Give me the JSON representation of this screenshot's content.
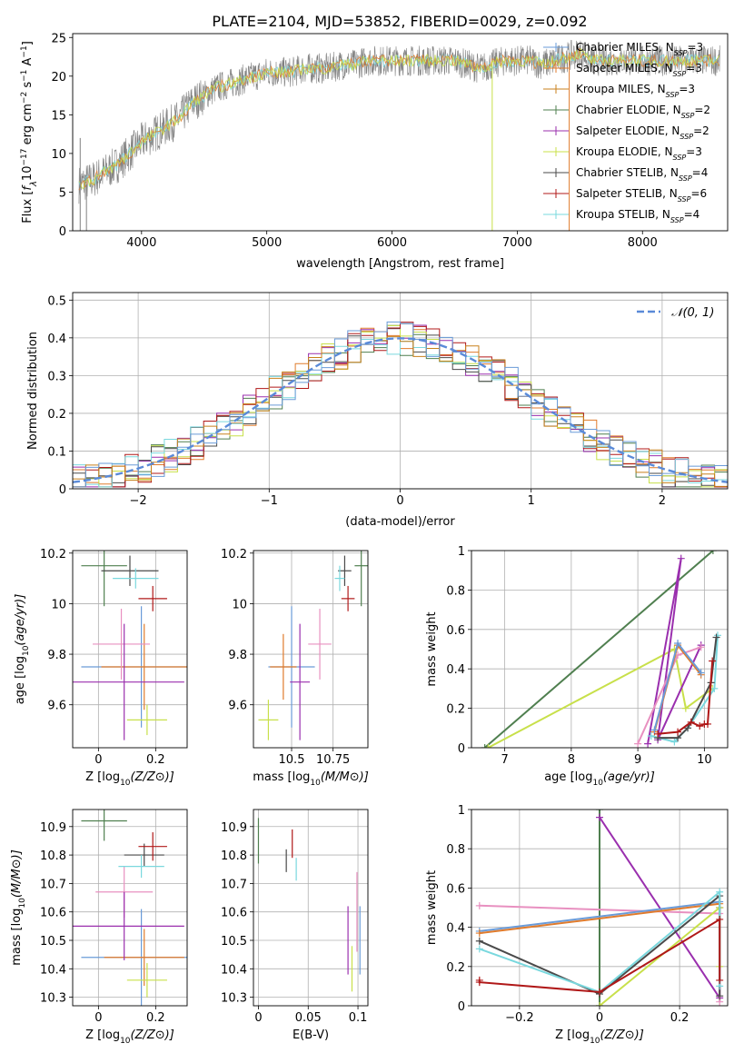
{
  "title": "PLATE=2104, MJD=53852, FIBERID=0029, z=0.092",
  "model_colors": [
    "#6a9bd8",
    "#e07b2c",
    "#c8801c",
    "#4f7f4f",
    "#9a2fae",
    "#c8e04a",
    "#4a4a4a",
    "#b01818",
    "#7ad8de"
  ],
  "chart_data": [
    {
      "id": "spectrum",
      "type": "line",
      "xlabel": "wavelength [Angstrom, rest frame]",
      "ylabel": "Flux [f_λ10^-17 erg cm^-2 s^-1 A^-1]",
      "xlim": [
        3450,
        8680
      ],
      "ylim": [
        0,
        25.5
      ],
      "xticks": [
        4000,
        5000,
        6000,
        7000,
        8000
      ],
      "yticks": [
        0,
        5,
        10,
        15,
        20,
        25
      ],
      "grid": false,
      "legend_position": "top-right",
      "legend": [
        {
          "text": "Chabrier MILES, N",
          "sub": "SSP",
          "tail": "=3",
          "color": "#6a9bd8"
        },
        {
          "text": "Salpeter MILES, N",
          "sub": "SSP",
          "tail": "=3",
          "color": "#e07b2c"
        },
        {
          "text": "Kroupa MILES, N",
          "sub": "SSP",
          "tail": "=3",
          "color": "#c8801c"
        },
        {
          "text": "Chabrier ELODIE, N",
          "sub": "SSP",
          "tail": "=2",
          "color": "#4f7f4f"
        },
        {
          "text": "Salpeter ELODIE, N",
          "sub": "SSP",
          "tail": "=2",
          "color": "#9a2fae"
        },
        {
          "text": "Kroupa ELODIE, N",
          "sub": "SSP",
          "tail": "=3",
          "color": "#c8e04a"
        },
        {
          "text": "Chabrier STELIB, N",
          "sub": "SSP",
          "tail": "=4",
          "color": "#4a4a4a"
        },
        {
          "text": "Salpeter STELIB, N",
          "sub": "SSP",
          "tail": "=6",
          "color": "#b01818"
        },
        {
          "text": "Kroupa STELIB, N",
          "sub": "SSP",
          "tail": "=4",
          "color": "#7ad8de"
        }
      ],
      "continuum": {
        "x": [
          3500,
          3600,
          3700,
          3800,
          3900,
          4000,
          4100,
          4200,
          4300,
          4400,
          4500,
          4600,
          4700,
          4800,
          4900,
          5000,
          5100,
          5200,
          5300,
          5400,
          5500,
          5600,
          5700,
          5800,
          5900,
          6000,
          6100,
          6200,
          6300,
          6400,
          6500,
          6600,
          6700,
          6800,
          6900,
          7000,
          7100,
          7200,
          7300,
          7400,
          7500,
          7600
        ],
        "y": [
          6.0,
          6.5,
          7.5,
          8.5,
          10.0,
          11.5,
          12.5,
          13.5,
          14.5,
          16.5,
          17.5,
          18.5,
          19.0,
          19.5,
          20.0,
          20.5,
          20.5,
          20.5,
          21.0,
          21.0,
          21.0,
          21.5,
          21.5,
          22.0,
          22.0,
          22.0,
          22.0,
          22.0,
          22.0,
          22.0,
          22.0,
          21.5,
          21.0,
          21.5,
          22.0,
          22.0,
          22.0,
          21.5,
          22.0,
          22.5,
          23.0,
          22.0
        ]
      }
    },
    {
      "id": "residuals",
      "type": "line",
      "xlabel": "(data-model)/error",
      "ylabel": "Normed distribution",
      "xlim": [
        -2.5,
        2.5
      ],
      "ylim": [
        0,
        0.52
      ],
      "xticks": [
        -2,
        -1,
        0,
        1,
        2
      ],
      "yticks": [
        0.0,
        0.1,
        0.2,
        0.3,
        0.4,
        0.5
      ],
      "grid": true,
      "legend_position": "top-right",
      "legend": [
        {
          "text": "𝒩(0, 1)",
          "color": "#5a8ad8",
          "dashed": true
        }
      ],
      "bin_width": 0.1
    },
    {
      "id": "age_vs_z",
      "type": "scatter",
      "xlabel": "Z [log10(Z/Z⊙)]",
      "ylabel": "age  [log10(age/yr)]",
      "xlim": [
        -0.09,
        0.31
      ],
      "ylim": [
        9.43,
        10.21
      ],
      "xticks": [
        0.0,
        0.2
      ],
      "yticks": [
        9.6,
        9.8,
        10.0,
        10.2
      ],
      "grid": true,
      "points": [
        {
          "x": 0.15,
          "xerr": 0.21,
          "y": 9.75,
          "yerr": 0.24,
          "color": "#6a9bd8"
        },
        {
          "x": 0.16,
          "xerr": 0.15,
          "y": 9.75,
          "yerr": 0.17,
          "color": "#e07b2c"
        },
        {
          "x": 0.08,
          "xerr": 0.1,
          "y": 9.84,
          "yerr": 0.14,
          "color": "#e890c0"
        },
        {
          "x": 0.02,
          "xerr": 0.08,
          "y": 10.15,
          "yerr": 0.16,
          "color": "#4f7f4f"
        },
        {
          "x": 0.09,
          "xerr": 0.21,
          "y": 9.69,
          "yerr": 0.23,
          "color": "#9a2fae"
        },
        {
          "x": 0.17,
          "xerr": 0.07,
          "y": 9.54,
          "yerr": 0.06,
          "color": "#c8e04a"
        },
        {
          "x": 0.11,
          "xerr": 0.1,
          "y": 10.13,
          "yerr": 0.06,
          "color": "#4a4a4a"
        },
        {
          "x": 0.19,
          "xerr": 0.05,
          "y": 10.02,
          "yerr": 0.05,
          "color": "#b01818"
        },
        {
          "x": 0.13,
          "xerr": 0.08,
          "y": 10.1,
          "yerr": 0.04,
          "color": "#7ad8de"
        }
      ]
    },
    {
      "id": "age_vs_mass",
      "type": "scatter",
      "xlabel": "mass [log10(M/M⊙)]",
      "ylabel": "",
      "xlim": [
        10.27,
        10.96
      ],
      "ylim": [
        9.43,
        10.21
      ],
      "xticks": [
        10.5,
        10.75
      ],
      "yticks": [
        9.6,
        9.8,
        10.0,
        10.2
      ],
      "grid": true,
      "points": [
        {
          "x": 10.5,
          "xerr": 0.14,
          "y": 9.75,
          "yerr": 0.24,
          "color": "#6a9bd8"
        },
        {
          "x": 10.45,
          "xerr": 0.08,
          "y": 9.75,
          "yerr": 0.13,
          "color": "#e07b2c"
        },
        {
          "x": 10.67,
          "xerr": 0.07,
          "y": 9.84,
          "yerr": 0.14,
          "color": "#e890c0"
        },
        {
          "x": 10.92,
          "xerr": 0.04,
          "y": 10.15,
          "yerr": 0.16,
          "color": "#4f7f4f"
        },
        {
          "x": 10.55,
          "xerr": 0.06,
          "y": 9.69,
          "yerr": 0.23,
          "color": "#9a2fae"
        },
        {
          "x": 10.36,
          "xerr": 0.06,
          "y": 9.54,
          "yerr": 0.08,
          "color": "#c8e04a"
        },
        {
          "x": 10.82,
          "xerr": 0.04,
          "y": 10.13,
          "yerr": 0.06,
          "color": "#4a4a4a"
        },
        {
          "x": 10.84,
          "xerr": 0.04,
          "y": 10.02,
          "yerr": 0.05,
          "color": "#b01818"
        },
        {
          "x": 10.79,
          "xerr": 0.03,
          "y": 10.1,
          "yerr": 0.05,
          "color": "#7ad8de"
        }
      ]
    },
    {
      "id": "weight_vs_age",
      "type": "line",
      "xlabel": "age  [log10(age/yr)]",
      "ylabel": "mass weight",
      "xlim": [
        6.5,
        10.35
      ],
      "ylim": [
        0,
        1.0
      ],
      "xticks": [
        7,
        8,
        9,
        10
      ],
      "yticks": [
        0.0,
        0.2,
        0.4,
        0.6,
        0.8,
        1.0
      ],
      "grid": true,
      "series": [
        {
          "color": "#4f7f4f",
          "x": [
            6.7,
            10.13
          ],
          "y": [
            0.0,
            1.0
          ]
        },
        {
          "color": "#c8e04a",
          "x": [
            6.75,
            9.55,
            9.72,
            10.12
          ],
          "y": [
            0.0,
            0.5,
            0.2,
            0.3
          ]
        },
        {
          "color": "#9a2fae",
          "x": [
            9.15,
            9.65,
            9.3,
            9.95
          ],
          "y": [
            0.02,
            0.96,
            0.04,
            0.52
          ]
        },
        {
          "color": "#e890c0",
          "x": [
            9.0,
            9.6,
            9.95
          ],
          "y": [
            0.02,
            0.47,
            0.51
          ]
        },
        {
          "color": "#e07b2c",
          "x": [
            9.25,
            9.6,
            9.95
          ],
          "y": [
            0.08,
            0.52,
            0.37
          ]
        },
        {
          "color": "#6a9bd8",
          "x": [
            9.25,
            9.6,
            9.95
          ],
          "y": [
            0.09,
            0.53,
            0.38
          ]
        },
        {
          "color": "#7ad8de",
          "x": [
            9.2,
            9.55,
            9.75,
            10.15,
            10.2
          ],
          "y": [
            0.06,
            0.03,
            0.1,
            0.3,
            0.57
          ]
        },
        {
          "color": "#4a4a4a",
          "x": [
            9.3,
            9.6,
            9.75,
            10.1,
            10.18
          ],
          "y": [
            0.05,
            0.05,
            0.1,
            0.33,
            0.56
          ]
        },
        {
          "color": "#b01818",
          "x": [
            9.3,
            9.6,
            9.8,
            9.93,
            10.0,
            10.05,
            10.12
          ],
          "y": [
            0.07,
            0.08,
            0.13,
            0.11,
            0.12,
            0.12,
            0.44
          ]
        }
      ]
    },
    {
      "id": "mass_vs_z",
      "type": "scatter",
      "xlabel": "Z [log10(Z/Z⊙)]",
      "ylabel": "mass [log10(M/M⊙)]",
      "xlim": [
        -0.09,
        0.31
      ],
      "ylim": [
        10.27,
        10.96
      ],
      "xticks": [
        0.0,
        0.2
      ],
      "yticks": [
        10.3,
        10.4,
        10.5,
        10.6,
        10.7,
        10.8,
        10.9
      ],
      "grid": true,
      "points": [
        {
          "x": 0.15,
          "xerr": 0.21,
          "y": 10.44,
          "yerr": 0.17,
          "color": "#6a9bd8"
        },
        {
          "x": 0.16,
          "xerr": 0.14,
          "y": 10.44,
          "yerr": 0.1,
          "color": "#e07b2c"
        },
        {
          "x": 0.09,
          "xerr": 0.1,
          "y": 10.67,
          "yerr": 0.09,
          "color": "#e890c0"
        },
        {
          "x": 0.02,
          "xerr": 0.08,
          "y": 10.92,
          "yerr": 0.07,
          "color": "#4f7f4f"
        },
        {
          "x": 0.09,
          "xerr": 0.21,
          "y": 10.55,
          "yerr": 0.12,
          "color": "#9a2fae"
        },
        {
          "x": 0.17,
          "xerr": 0.07,
          "y": 10.36,
          "yerr": 0.06,
          "color": "#c8e04a"
        },
        {
          "x": 0.16,
          "xerr": 0.07,
          "y": 10.8,
          "yerr": 0.04,
          "color": "#4a4a4a"
        },
        {
          "x": 0.19,
          "xerr": 0.05,
          "y": 10.83,
          "yerr": 0.05,
          "color": "#b01818"
        },
        {
          "x": 0.15,
          "xerr": 0.08,
          "y": 10.76,
          "yerr": 0.04,
          "color": "#7ad8de"
        }
      ]
    },
    {
      "id": "mass_vs_ebv",
      "type": "scatter",
      "xlabel": "E(B-V)",
      "ylabel": "",
      "xlim": [
        -0.005,
        0.11
      ],
      "ylim": [
        10.27,
        10.96
      ],
      "xticks": [
        0.0,
        0.05,
        0.1
      ],
      "yticks": [
        10.3,
        10.4,
        10.5,
        10.6,
        10.7,
        10.8,
        10.9
      ],
      "grid": true,
      "points": [
        {
          "x": 0.102,
          "y": 10.5,
          "yerr": 0.12,
          "color": "#6a9bd8"
        },
        {
          "x": 0.099,
          "y": 10.6,
          "yerr": 0.14,
          "color": "#e890c0"
        },
        {
          "x": 0.0,
          "y": 10.85,
          "yerr": 0.08,
          "color": "#4f7f4f"
        },
        {
          "x": 0.09,
          "y": 10.5,
          "yerr": 0.12,
          "color": "#9a2fae"
        },
        {
          "x": 0.094,
          "y": 10.4,
          "yerr": 0.08,
          "color": "#c8e04a"
        },
        {
          "x": 0.028,
          "y": 10.78,
          "yerr": 0.04,
          "color": "#4a4a4a"
        },
        {
          "x": 0.034,
          "y": 10.84,
          "yerr": 0.05,
          "color": "#b01818"
        },
        {
          "x": 0.038,
          "y": 10.75,
          "yerr": 0.04,
          "color": "#7ad8de"
        }
      ]
    },
    {
      "id": "weight_vs_z",
      "type": "line",
      "xlabel": "Z [log10(Z/Z⊙)]",
      "ylabel": "mass weight",
      "xlim": [
        -0.32,
        0.32
      ],
      "ylim": [
        0,
        1.0
      ],
      "xticks": [
        -0.2,
        0.0,
        0.2
      ],
      "yticks": [
        0.0,
        0.2,
        0.4,
        0.6,
        0.8,
        1.0
      ],
      "grid": true,
      "series": [
        {
          "color": "#4f7f4f",
          "x": [
            0.0,
            0.0
          ],
          "y": [
            0.0,
            1.0
          ]
        },
        {
          "color": "#9a2fae",
          "x": [
            0.0,
            0.3,
            0.3
          ],
          "y": [
            0.96,
            0.04,
            0.5
          ]
        },
        {
          "color": "#e890c0",
          "x": [
            -0.3,
            0.3,
            0.3
          ],
          "y": [
            0.51,
            0.47,
            0.02
          ]
        },
        {
          "color": "#6a9bd8",
          "x": [
            -0.3,
            0.3
          ],
          "y": [
            0.38,
            0.53
          ]
        },
        {
          "color": "#e07b2c",
          "x": [
            -0.3,
            0.3
          ],
          "y": [
            0.37,
            0.52
          ]
        },
        {
          "color": "#c8e04a",
          "x": [
            0.0,
            0.3,
            0.3
          ],
          "y": [
            0.0,
            0.5,
            0.2
          ]
        },
        {
          "color": "#4a4a4a",
          "x": [
            -0.3,
            0.0,
            0.3,
            0.3
          ],
          "y": [
            0.33,
            0.06,
            0.56,
            0.05
          ]
        },
        {
          "color": "#7ad8de",
          "x": [
            -0.3,
            0.0,
            0.3,
            0.3
          ],
          "y": [
            0.29,
            0.07,
            0.58,
            0.1
          ]
        },
        {
          "color": "#b01818",
          "x": [
            -0.3,
            -0.3,
            0.0,
            0.3,
            0.3
          ],
          "y": [
            0.13,
            0.12,
            0.07,
            0.44,
            0.13
          ]
        }
      ]
    }
  ]
}
